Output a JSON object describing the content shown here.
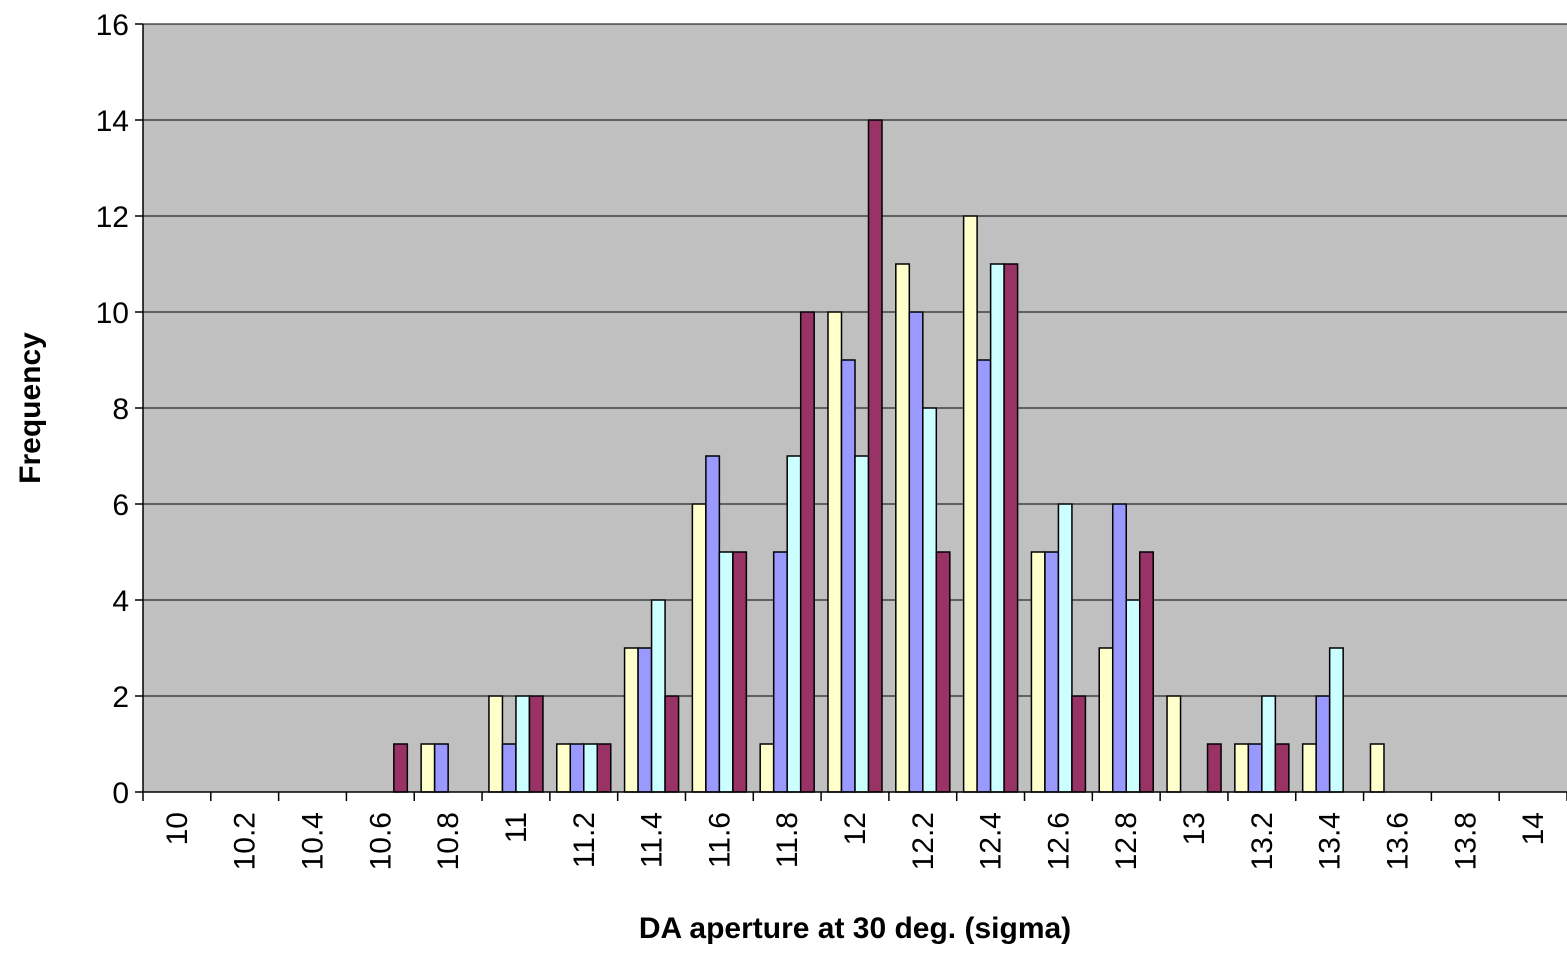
{
  "chart_data": {
    "type": "bar",
    "xlabel": "DA aperture at 30 deg. (sigma)",
    "ylabel": "Frequency",
    "ylim": [
      0,
      16
    ],
    "yticks": [
      "0",
      "2",
      "4",
      "6",
      "8",
      "10",
      "12",
      "14",
      "16"
    ],
    "categories": [
      "10",
      "10.2",
      "10.4",
      "10.6",
      "10.8",
      "11",
      "11.2",
      "11.4",
      "11.6",
      "11.8",
      "12",
      "12.2",
      "12.4",
      "12.6",
      "12.8",
      "13",
      "13.2",
      "13.4",
      "13.6",
      "13.8",
      "14"
    ],
    "grid": true,
    "legend": "none",
    "plot_background": "#C0C0C0",
    "series": [
      {
        "color": "#FFFFCC",
        "values": [
          0,
          0,
          0,
          0,
          1,
          2,
          1,
          3,
          6,
          1,
          10,
          11,
          12,
          5,
          3,
          2,
          1,
          1,
          1,
          0,
          0
        ]
      },
      {
        "color": "#9999FF",
        "values": [
          0,
          0,
          0,
          0,
          1,
          1,
          1,
          3,
          7,
          5,
          9,
          10,
          9,
          5,
          6,
          0,
          1,
          2,
          0,
          0,
          0
        ]
      },
      {
        "color": "#CCFFFF",
        "values": [
          0,
          0,
          0,
          0,
          0,
          2,
          1,
          4,
          5,
          7,
          7,
          8,
          11,
          6,
          4,
          0,
          2,
          3,
          0,
          0,
          0
        ]
      },
      {
        "color": "#993366",
        "values": [
          0,
          0,
          0,
          1,
          0,
          2,
          1,
          2,
          5,
          10,
          14,
          5,
          11,
          2,
          5,
          1,
          1,
          0,
          0,
          0,
          0
        ]
      }
    ]
  }
}
